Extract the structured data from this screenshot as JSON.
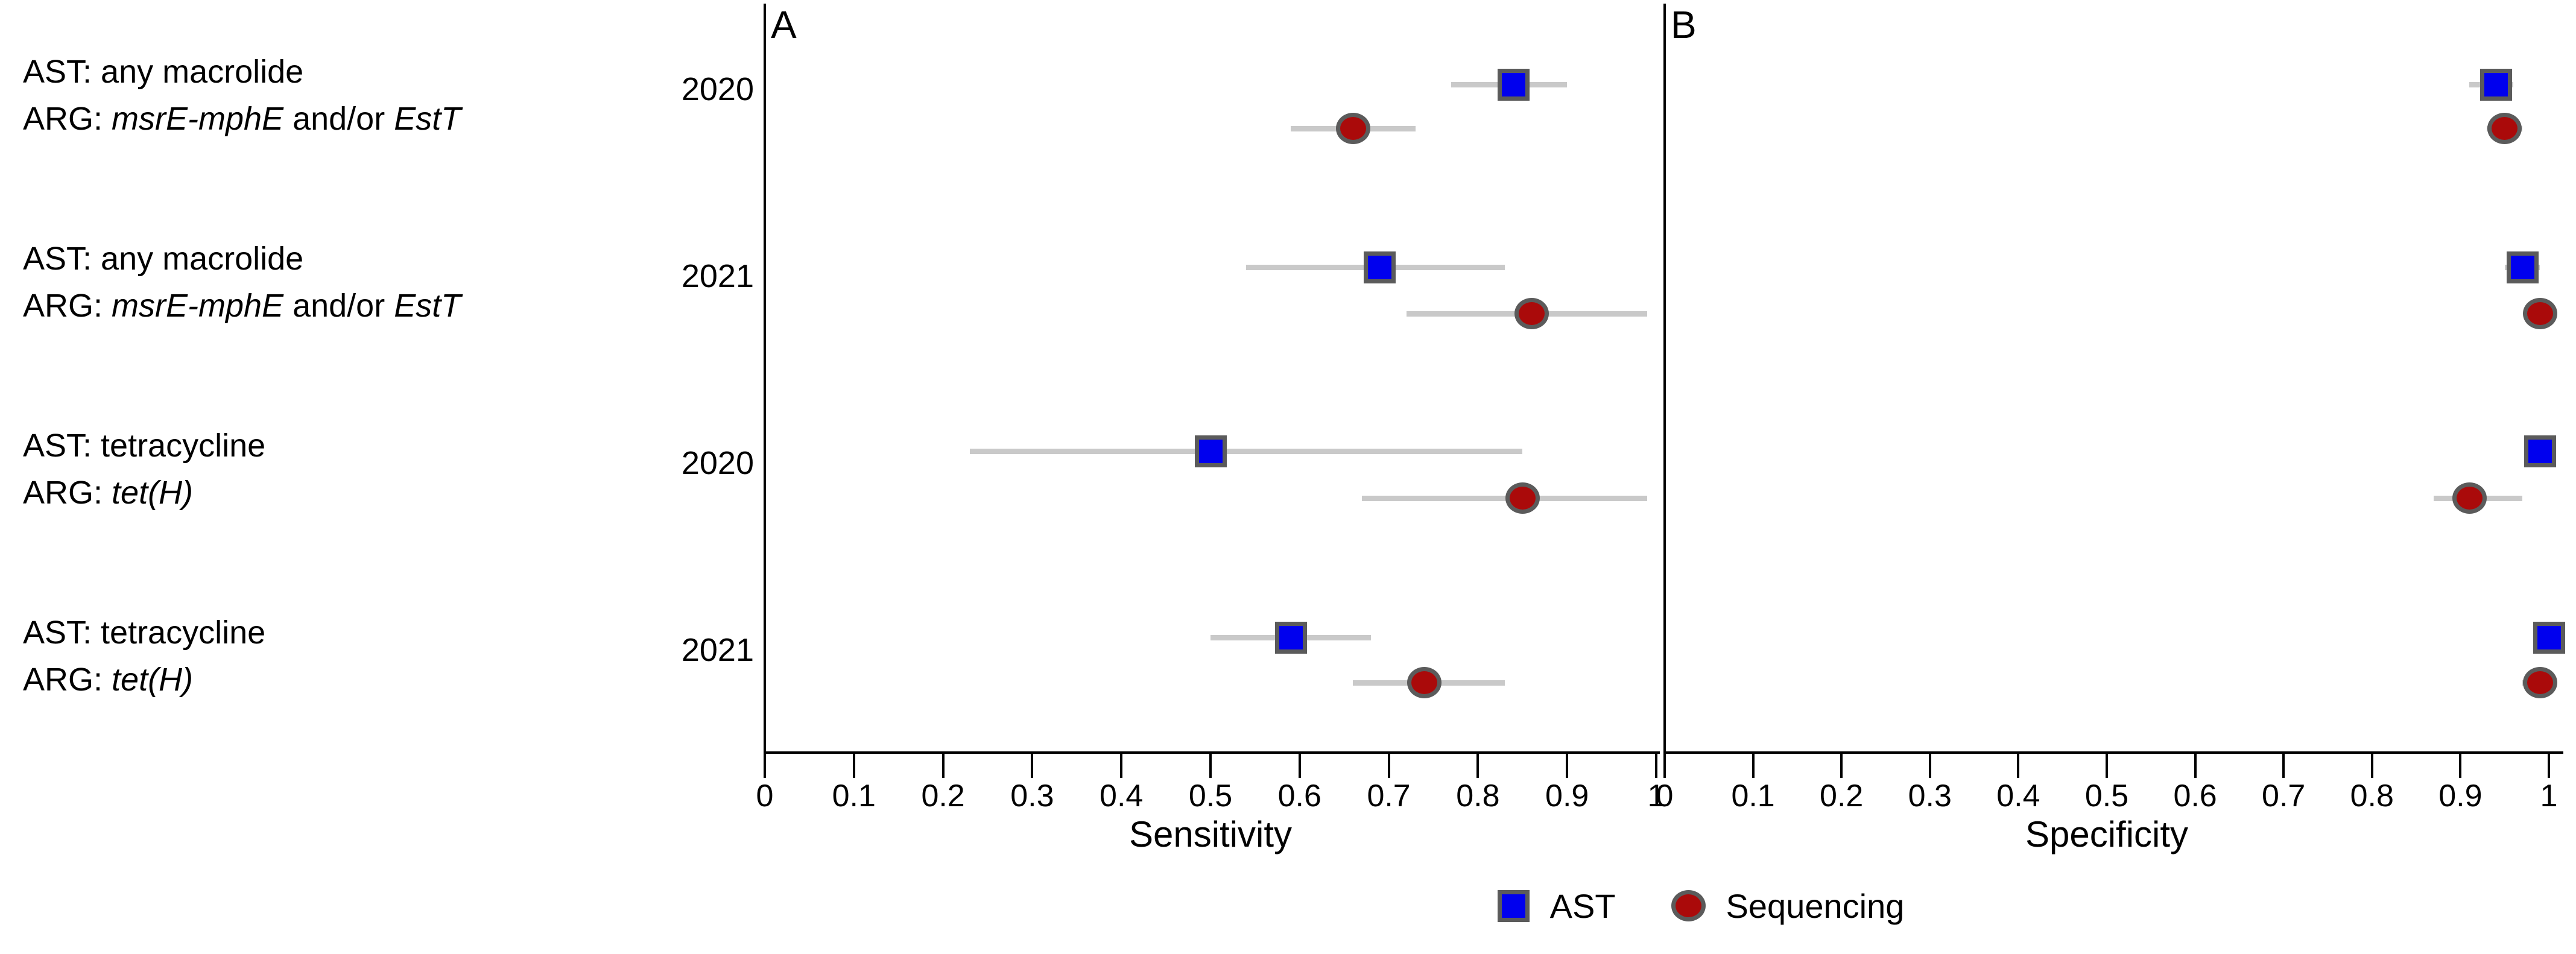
{
  "figure": {
    "panels": [
      {
        "id": "A",
        "letter": "A",
        "xlabel": "Sensitivity"
      },
      {
        "id": "B",
        "letter": "B",
        "xlabel": "Specificity"
      }
    ],
    "legend": {
      "items": [
        {
          "label": "AST",
          "shape": "square",
          "color": "#0000EE"
        },
        {
          "label": "Sequencing",
          "shape": "circle",
          "color": "#AA0A0A"
        }
      ]
    },
    "colors": {
      "ast_fill": "#0000EE",
      "sequencing_fill": "#AA0A0A",
      "marker_border": "#5B5B5B",
      "error_bar": "#C9C9C9",
      "axis": "#000000"
    }
  },
  "groups": [
    {
      "line1": "AST: any macrolide",
      "line2": [
        {
          "t": "ARG: ",
          "i": false
        },
        {
          "t": "msrE-mphE",
          "i": true
        },
        {
          "t": " and/or ",
          "i": false
        },
        {
          "t": "EstT",
          "i": true
        }
      ],
      "year": "2020"
    },
    {
      "line1": "AST: any macrolide",
      "line2": [
        {
          "t": "ARG: ",
          "i": false
        },
        {
          "t": "msrE-mphE",
          "i": true
        },
        {
          "t": " and/or ",
          "i": false
        },
        {
          "t": "EstT",
          "i": true
        }
      ],
      "year": "2021"
    },
    {
      "line1": "AST: tetracycline",
      "line2": [
        {
          "t": "ARG: ",
          "i": false
        },
        {
          "t": "tet(H)",
          "i": true
        }
      ],
      "year": "2020"
    },
    {
      "line1": "AST: tetracycline",
      "line2": [
        {
          "t": "ARG: ",
          "i": false
        },
        {
          "t": "tet(H)",
          "i": true
        }
      ],
      "year": "2021"
    }
  ],
  "chart_data": {
    "type": "scatter",
    "subtype": "paired-forest-plot",
    "grid": false,
    "xlim": [
      0,
      1
    ],
    "x_tick_values": [
      0,
      0.1,
      0.2,
      0.3,
      0.4,
      0.5,
      0.6,
      0.7,
      0.8,
      0.9,
      1
    ],
    "x_tick_labels": [
      "0",
      "0.1",
      "0.2",
      "0.3",
      "0.4",
      "0.5",
      "0.6",
      "0.7",
      "0.8",
      "0.9",
      "1"
    ],
    "legend_position": "bottom-center",
    "row_categories": [
      "AST: any macrolide / ARG: msrE-mphE and/or EstT — 2020",
      "AST: any macrolide / ARG: msrE-mphE and/or EstT — 2021",
      "AST: tetracycline / ARG: tet(H) — 2020",
      "AST: tetracycline / ARG: tet(H) — 2021"
    ],
    "panels": [
      {
        "id": "A",
        "xlabel": "Sensitivity",
        "series": [
          {
            "name": "AST",
            "marker": "square",
            "points": [
              {
                "group": 0,
                "value": 0.84,
                "ci_low": 0.77,
                "ci_high": 0.9
              },
              {
                "group": 1,
                "value": 0.69,
                "ci_low": 0.54,
                "ci_high": 0.83
              },
              {
                "group": 2,
                "value": 0.5,
                "ci_low": 0.23,
                "ci_high": 0.85
              },
              {
                "group": 3,
                "value": 0.59,
                "ci_low": 0.5,
                "ci_high": 0.68
              }
            ]
          },
          {
            "name": "Sequencing",
            "marker": "circle",
            "points": [
              {
                "group": 0,
                "value": 0.66,
                "ci_low": 0.59,
                "ci_high": 0.73
              },
              {
                "group": 1,
                "value": 0.86,
                "ci_low": 0.72,
                "ci_high": 0.99
              },
              {
                "group": 2,
                "value": 0.85,
                "ci_low": 0.67,
                "ci_high": 0.99
              },
              {
                "group": 3,
                "value": 0.74,
                "ci_low": 0.66,
                "ci_high": 0.83
              }
            ]
          }
        ]
      },
      {
        "id": "B",
        "xlabel": "Specificity",
        "series": [
          {
            "name": "AST",
            "marker": "square",
            "points": [
              {
                "group": 0,
                "value": 0.94,
                "ci_low": 0.91,
                "ci_high": 0.96
              },
              {
                "group": 1,
                "value": 0.97,
                "ci_low": 0.95,
                "ci_high": 0.99
              },
              {
                "group": 2,
                "value": 0.99,
                "ci_low": 0.99,
                "ci_high": 0.99
              },
              {
                "group": 3,
                "value": 1.0,
                "ci_low": 1.0,
                "ci_high": 1.0
              }
            ]
          },
          {
            "name": "Sequencing",
            "marker": "circle",
            "points": [
              {
                "group": 0,
                "value": 0.95,
                "ci_low": 0.93,
                "ci_high": 0.97
              },
              {
                "group": 1,
                "value": 0.99,
                "ci_low": 0.98,
                "ci_high": 1.0
              },
              {
                "group": 2,
                "value": 0.91,
                "ci_low": 0.87,
                "ci_high": 0.97
              },
              {
                "group": 3,
                "value": 0.99,
                "ci_low": 0.97,
                "ci_high": 1.0
              }
            ]
          }
        ]
      }
    ]
  }
}
